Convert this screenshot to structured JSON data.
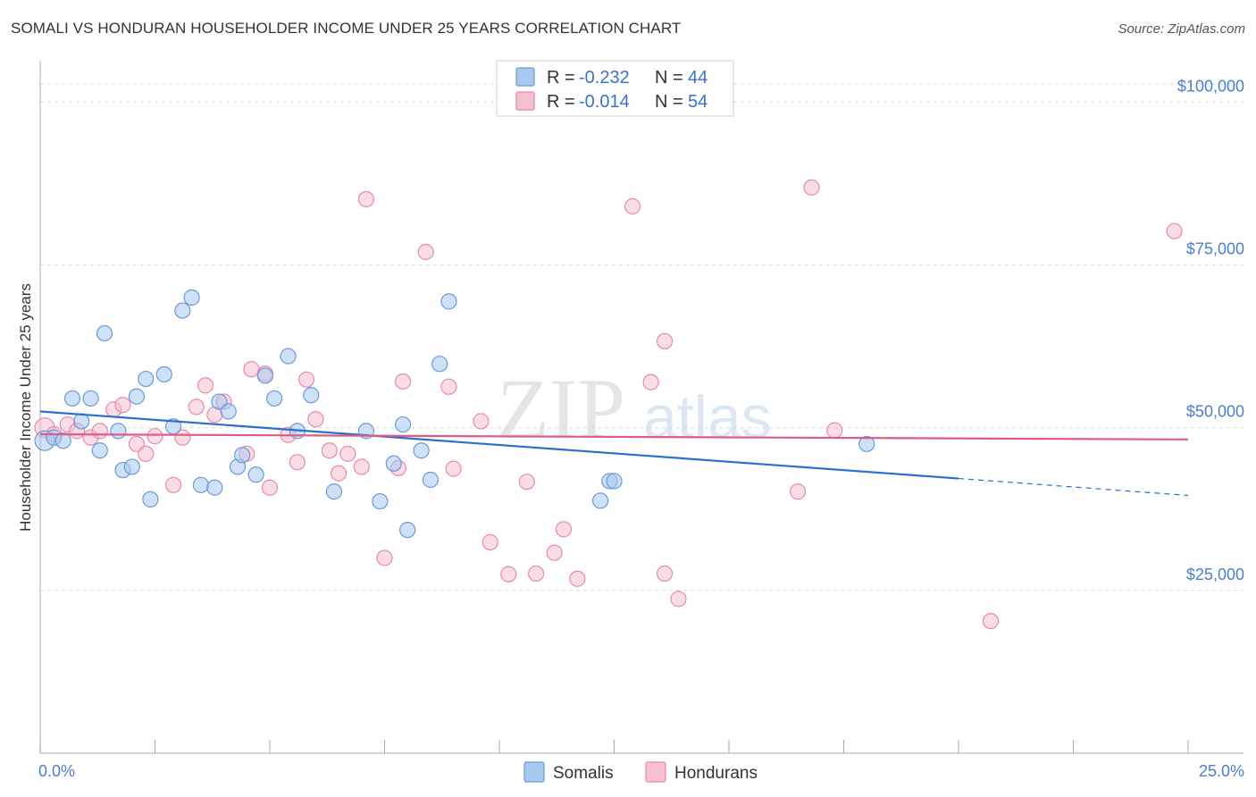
{
  "title": "SOMALI VS HONDURAN HOUSEHOLDER INCOME UNDER 25 YEARS CORRELATION CHART",
  "source": "Source: ZipAtlas.com",
  "watermark": {
    "zip": "ZIP",
    "atlas": "atlas"
  },
  "colors": {
    "somali_fill": "#a8c8f0",
    "somali_stroke": "#6a9ad8",
    "somali_line": "#2a6fcf",
    "honduran_fill": "#f6c0d0",
    "honduran_stroke": "#e88aa8",
    "honduran_line": "#e05a88",
    "grid": "#d8d8d8",
    "axis_label": "#4a7ed0"
  },
  "legend": {
    "rows": [
      {
        "r_label": "R = ",
        "r_value": "-0.232",
        "n_label": "N = ",
        "n_value": "44"
      },
      {
        "r_label": "R = ",
        "r_value": "-0.014",
        "n_label": "N = ",
        "n_value": "54"
      }
    ]
  },
  "chart_data": {
    "type": "scatter",
    "title": "SOMALI VS HONDURAN HOUSEHOLDER INCOME UNDER 25 YEARS CORRELATION CHART",
    "xlabel": "",
    "ylabel": "Householder Income Under 25 years",
    "xlim": [
      0,
      25
    ],
    "ylim": [
      0,
      105000
    ],
    "x_tick_labels": [
      "0.0%",
      "25.0%"
    ],
    "y_ticks": [
      25000,
      50000,
      75000,
      100000
    ],
    "y_tick_labels": [
      "$25,000",
      "$50,000",
      "$75,000",
      "$100,000"
    ],
    "grid": true,
    "series": [
      {
        "name": "Somalis",
        "points": [
          [
            0.1,
            48000
          ],
          [
            0.3,
            48500
          ],
          [
            0.5,
            48000
          ],
          [
            0.7,
            54500
          ],
          [
            0.9,
            51000
          ],
          [
            1.1,
            54500
          ],
          [
            1.3,
            46500
          ],
          [
            1.4,
            64500
          ],
          [
            1.7,
            49500
          ],
          [
            1.8,
            43500
          ],
          [
            2.0,
            44000
          ],
          [
            2.1,
            54800
          ],
          [
            2.3,
            57500
          ],
          [
            2.4,
            39000
          ],
          [
            2.7,
            58200
          ],
          [
            2.9,
            50200
          ],
          [
            3.1,
            68000
          ],
          [
            3.3,
            70000
          ],
          [
            3.5,
            41200
          ],
          [
            3.8,
            40800
          ],
          [
            3.9,
            54000
          ],
          [
            4.1,
            52500
          ],
          [
            4.3,
            44000
          ],
          [
            4.4,
            45800
          ],
          [
            4.7,
            42800
          ],
          [
            4.9,
            58000
          ],
          [
            5.1,
            54500
          ],
          [
            5.4,
            61000
          ],
          [
            5.6,
            49500
          ],
          [
            5.9,
            55000
          ],
          [
            6.4,
            40200
          ],
          [
            7.1,
            49500
          ],
          [
            7.4,
            38700
          ],
          [
            7.7,
            44500
          ],
          [
            7.9,
            50500
          ],
          [
            8.0,
            34300
          ],
          [
            8.3,
            46500
          ],
          [
            8.5,
            42000
          ],
          [
            8.7,
            59800
          ],
          [
            8.9,
            69400
          ],
          [
            12.2,
            38800
          ],
          [
            12.4,
            41800
          ],
          [
            12.5,
            41800
          ],
          [
            18.0,
            47500
          ]
        ]
      },
      {
        "name": "Hondurans",
        "points": [
          [
            0.1,
            50000
          ],
          [
            0.3,
            49000
          ],
          [
            0.6,
            50500
          ],
          [
            0.8,
            49500
          ],
          [
            1.1,
            48500
          ],
          [
            1.3,
            49500
          ],
          [
            1.6,
            52800
          ],
          [
            1.8,
            53500
          ],
          [
            2.1,
            47500
          ],
          [
            2.3,
            46000
          ],
          [
            2.5,
            48700
          ],
          [
            2.9,
            41200
          ],
          [
            3.1,
            48500
          ],
          [
            3.4,
            53200
          ],
          [
            3.6,
            56500
          ],
          [
            3.8,
            52000
          ],
          [
            4.0,
            54000
          ],
          [
            4.5,
            46000
          ],
          [
            4.6,
            59000
          ],
          [
            4.9,
            58300
          ],
          [
            5.0,
            40800
          ],
          [
            5.4,
            48900
          ],
          [
            5.6,
            44700
          ],
          [
            5.8,
            57400
          ],
          [
            6.0,
            51300
          ],
          [
            6.3,
            46500
          ],
          [
            6.5,
            43000
          ],
          [
            6.7,
            46000
          ],
          [
            7.0,
            44000
          ],
          [
            7.1,
            85100
          ],
          [
            7.5,
            30000
          ],
          [
            7.8,
            43800
          ],
          [
            7.9,
            57100
          ],
          [
            8.4,
            77000
          ],
          [
            8.9,
            56300
          ],
          [
            9.0,
            43700
          ],
          [
            9.6,
            51000
          ],
          [
            9.8,
            32400
          ],
          [
            10.2,
            27500
          ],
          [
            10.6,
            41700
          ],
          [
            10.8,
            27600
          ],
          [
            11.2,
            30800
          ],
          [
            11.4,
            34400
          ],
          [
            11.7,
            26800
          ],
          [
            12.9,
            84000
          ],
          [
            13.3,
            57000
          ],
          [
            13.6,
            63300
          ],
          [
            13.6,
            27600
          ],
          [
            13.9,
            23700
          ],
          [
            16.5,
            40200
          ],
          [
            16.8,
            86900
          ],
          [
            17.3,
            49600
          ],
          [
            20.7,
            20300
          ],
          [
            24.7,
            80200
          ]
        ]
      }
    ],
    "trend_lines": [
      {
        "series": "Somalis",
        "x_start": 0,
        "y_start": 52500,
        "x_solid_end": 20.0,
        "y_solid_end": 42200,
        "x_end": 25.0,
        "y_end": 39600,
        "dashed_extension": true
      },
      {
        "series": "Hondurans",
        "x_start": 0,
        "y_start": 49000,
        "x_end": 25.0,
        "y_end": 48200,
        "dashed_extension": false
      }
    ]
  },
  "bottom_legend": [
    {
      "label": "Somalis"
    },
    {
      "label": "Hondurans"
    }
  ]
}
